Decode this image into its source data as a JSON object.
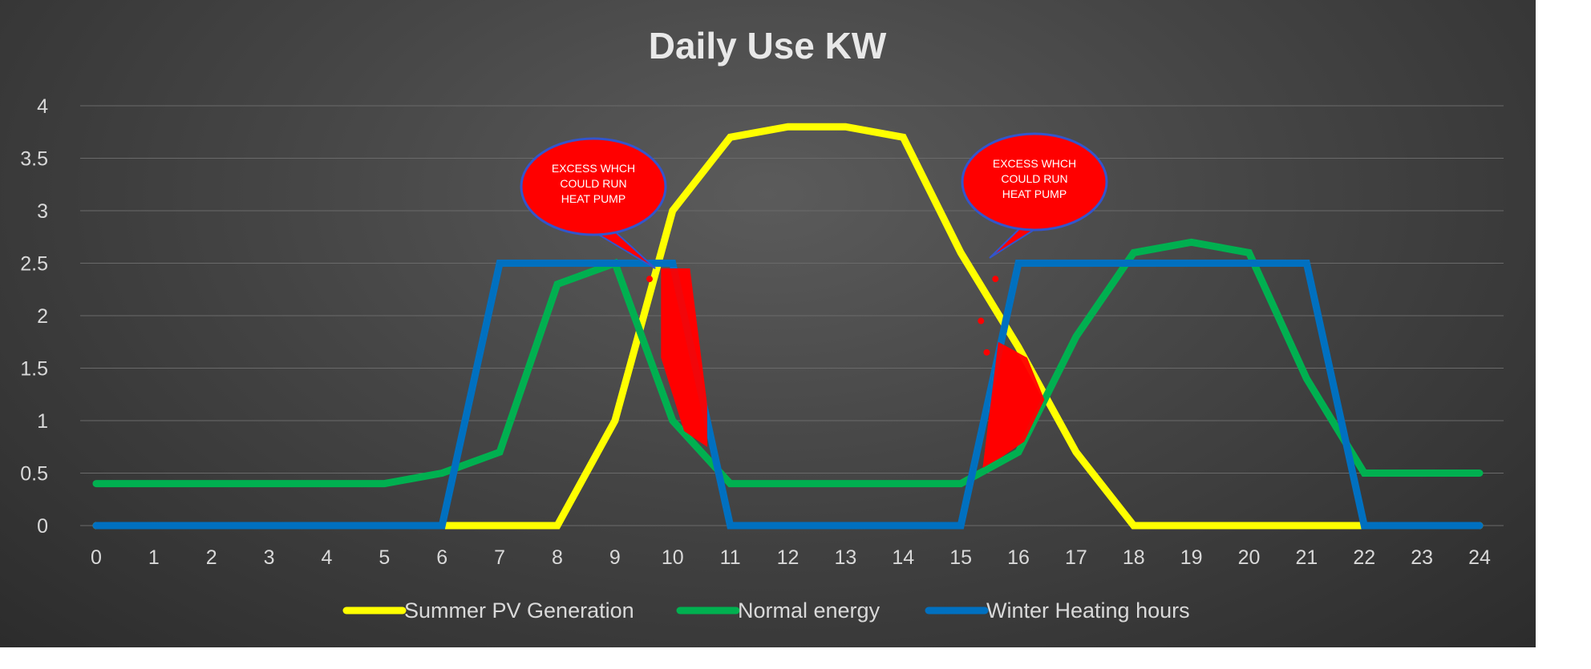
{
  "colors": {
    "summer": "#ffff00",
    "normal": "#00b050",
    "winter": "#0070c0",
    "excess": "#ff0000",
    "callout_border": "#3355cc",
    "grid": "#6a6a6a",
    "text": "#d9d9d9"
  },
  "chart_data": {
    "type": "line",
    "title": "Daily Use KW",
    "xlabel": "",
    "ylabel": "",
    "x": [
      0,
      1,
      2,
      3,
      4,
      5,
      6,
      7,
      8,
      9,
      10,
      11,
      12,
      13,
      14,
      15,
      16,
      17,
      18,
      19,
      20,
      21,
      22,
      23,
      24
    ],
    "x_tick_labels": [
      "0",
      "1",
      "2",
      "3",
      "4",
      "5",
      "6",
      "7",
      "8",
      "9",
      "10",
      "11",
      "12",
      "13",
      "14",
      "15",
      "16",
      "17",
      "18",
      "19",
      "20",
      "21",
      "22",
      "23",
      "24"
    ],
    "ylim": [
      0,
      4
    ],
    "y_tick_values": [
      0,
      0.5,
      1,
      1.5,
      2,
      2.5,
      3,
      3.5,
      4
    ],
    "y_tick_labels": [
      "0",
      "0.5",
      "1",
      "1.5",
      "2",
      "2.5",
      "3",
      "3.5",
      "4"
    ],
    "grid": true,
    "legend_position": "bottom",
    "series": [
      {
        "name": "Summer PV Generation",
        "color_key": "summer",
        "values": [
          0,
          0,
          0,
          0,
          0,
          0,
          0,
          0,
          0,
          1,
          3,
          3.7,
          3.8,
          3.8,
          3.7,
          2.6,
          1.7,
          0.7,
          0,
          0,
          0,
          0,
          0,
          0,
          0
        ]
      },
      {
        "name": "Normal energy",
        "color_key": "normal",
        "values": [
          0.4,
          0.4,
          0.4,
          0.4,
          0.4,
          0.4,
          0.5,
          0.7,
          2.3,
          2.5,
          1,
          0.4,
          0.4,
          0.4,
          0.4,
          0.4,
          0.7,
          1.8,
          2.6,
          2.7,
          2.6,
          1.4,
          0.5,
          0.5,
          0.5
        ]
      },
      {
        "name": "Winter Heating hours",
        "color_key": "winter",
        "values": [
          0,
          0,
          0,
          0,
          0,
          0,
          0,
          2.5,
          2.5,
          2.5,
          2.5,
          0,
          0,
          0,
          0,
          0,
          2.5,
          2.5,
          2.5,
          2.5,
          2.5,
          2.5,
          0,
          0,
          0
        ]
      }
    ],
    "excess_regions": [
      {
        "polygon": [
          [
            9.8,
            2.45
          ],
          [
            10.3,
            2.45
          ],
          [
            10.6,
            1.15
          ],
          [
            10.6,
            0.75
          ],
          [
            10.2,
            0.9
          ],
          [
            9.8,
            1.6
          ]
        ]
      },
      {
        "polygon": [
          [
            15.38,
            0.55
          ],
          [
            15.65,
            1.75
          ],
          [
            16.15,
            1.6
          ],
          [
            16.45,
            1.2
          ],
          [
            16.1,
            0.8
          ],
          [
            15.7,
            0.65
          ]
        ]
      }
    ],
    "annotations": [
      {
        "label": "callout-left",
        "lines": [
          "EXCESS WHCH",
          "COULD RUN",
          "HEAT PUMP"
        ],
        "target_x": 9.7,
        "target_y": 2.45
      },
      {
        "label": "callout-right",
        "lines": [
          "EXCESS WHCH",
          "COULD RUN",
          "HEAT PUMP"
        ],
        "target_x": 15.5,
        "target_y": 2.55
      }
    ],
    "markers": [
      [
        9.6,
        2.35
      ],
      [
        15.6,
        2.35
      ],
      [
        15.35,
        1.95
      ],
      [
        15.45,
        1.65
      ]
    ]
  }
}
